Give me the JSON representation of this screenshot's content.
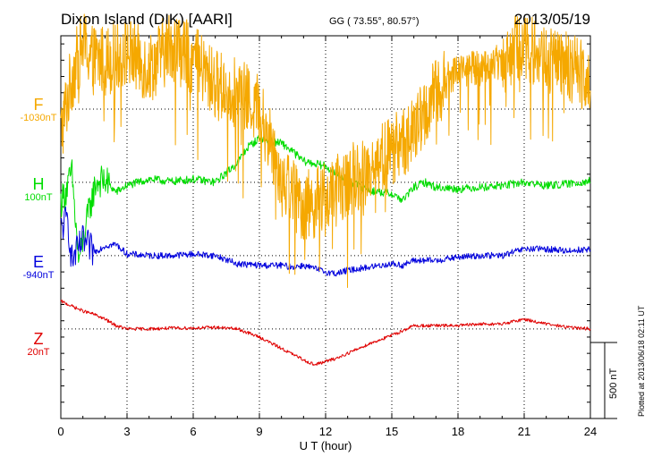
{
  "header": {
    "title": "Dixon Island (DIK)  [AARI]",
    "coords": "GG ( 73.55°,  80.57°)",
    "date": "2013/05/19"
  },
  "credit": "Plotted at 2013/06/18 02:11  UT",
  "colors": {
    "F": "#f5a800",
    "H": "#00dd00",
    "E": "#0000dd",
    "Z": "#e00000",
    "grid": "#000000"
  },
  "chart_data": {
    "type": "line",
    "title": "Dixon Island (DIK)  [AARI]",
    "xlabel": "U T (hour)",
    "ylabel": "",
    "xlim": [
      0,
      24
    ],
    "x_ticks": [
      "0",
      "3",
      "6",
      "9",
      "12",
      "15",
      "18",
      "21",
      "24"
    ],
    "scale_bar": {
      "value": 500,
      "label": "500 nT"
    },
    "ylim_nT_relative": [
      -1000,
      1350
    ],
    "series": [
      {
        "name": "F",
        "baseline_label": "-1030nT",
        "offset_nT": 900,
        "x": [
          0,
          0.5,
          1,
          1.5,
          2,
          3,
          4,
          5,
          6,
          7,
          8,
          9,
          10,
          11,
          12,
          13,
          14,
          15,
          16,
          17,
          18,
          19,
          20,
          21,
          22,
          23,
          24
        ],
        "y": [
          -150,
          200,
          400,
          300,
          300,
          350,
          250,
          400,
          300,
          150,
          100,
          0,
          -400,
          -600,
          -550,
          -450,
          -350,
          -250,
          -150,
          100,
          250,
          250,
          300,
          400,
          300,
          250,
          200
        ]
      },
      {
        "name": "H",
        "baseline_label": "100nT",
        "offset_nT": 450,
        "x": [
          0,
          0.3,
          0.5,
          0.8,
          1,
          1.3,
          1.6,
          2,
          2.5,
          3,
          4,
          5,
          6,
          7,
          8,
          8.5,
          9,
          9.5,
          10,
          10.5,
          11,
          12,
          13,
          14,
          15,
          15.5,
          16,
          16.5,
          17,
          18,
          19,
          20,
          21,
          22,
          23,
          24
        ],
        "y": [
          -120,
          -30,
          60,
          -480,
          -370,
          -160,
          0,
          10,
          -60,
          -20,
          20,
          5,
          20,
          0,
          120,
          220,
          270,
          250,
          240,
          190,
          130,
          100,
          10,
          -50,
          -70,
          -110,
          -30,
          0,
          -30,
          -40,
          -30,
          -20,
          0,
          -20,
          -10,
          10
        ]
      },
      {
        "name": "E",
        "baseline_label": "-940nT",
        "offset_nT": 0,
        "x": [
          0,
          0.3,
          0.5,
          1,
          1.5,
          2,
          2.5,
          3,
          4,
          5,
          6,
          7,
          8,
          9,
          10,
          10.5,
          11,
          11.5,
          12,
          12.5,
          13,
          14,
          15,
          15.5,
          16,
          17,
          18,
          19,
          20,
          21,
          22,
          23,
          24
        ],
        "y": [
          160,
          230,
          -30,
          90,
          20,
          60,
          70,
          10,
          0,
          0,
          10,
          0,
          -50,
          -60,
          -60,
          -70,
          -60,
          -80,
          -100,
          -110,
          -90,
          -70,
          -50,
          -60,
          -30,
          -30,
          -10,
          0,
          0,
          40,
          40,
          30,
          40
        ]
      },
      {
        "name": "Z",
        "baseline_label": "20nT",
        "offset_nT": -450,
        "x": [
          0,
          0.5,
          1,
          1.5,
          2,
          2.5,
          3,
          4,
          5,
          6,
          7,
          8,
          9,
          10,
          11,
          11.5,
          12,
          12.5,
          13,
          14,
          15,
          15.5,
          16,
          17,
          18,
          19,
          20,
          21,
          22,
          23,
          24
        ],
        "y": [
          170,
          140,
          110,
          90,
          60,
          20,
          0,
          0,
          5,
          5,
          10,
          0,
          -50,
          -120,
          -190,
          -220,
          -200,
          -180,
          -150,
          -90,
          -40,
          -10,
          20,
          20,
          20,
          30,
          30,
          60,
          30,
          10,
          0
        ]
      }
    ],
    "noise_amplitude_nT": {
      "F": 220,
      "H": 25,
      "E": 20,
      "Z": 10
    }
  }
}
